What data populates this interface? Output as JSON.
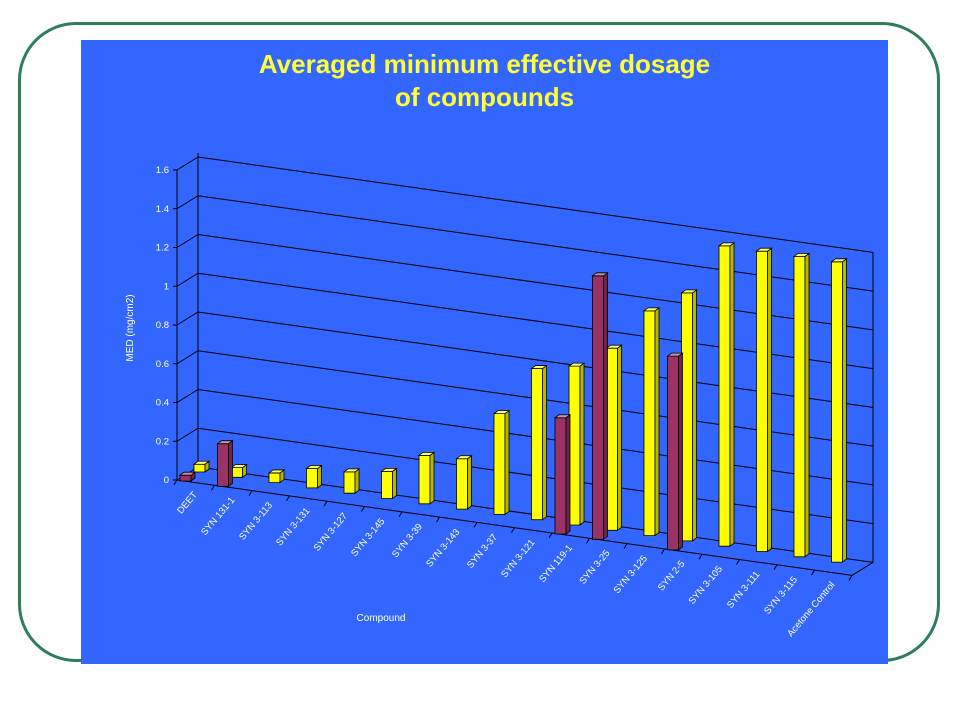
{
  "chart_data": {
    "type": "bar",
    "title": "Averaged minimum effective dosage of compounds",
    "title_lines": [
      "Averaged minimum effective dosage",
      "of compounds"
    ],
    "xlabel": "Compound",
    "ylabel": "MED (mg/cm2)",
    "ylim": [
      0,
      1.6
    ],
    "yticks": [
      "0",
      "0.2",
      "0.4",
      "0.6",
      "0.8",
      "1",
      "1.2",
      "1.4",
      "1.6"
    ],
    "grid": true,
    "style": "3d-clustered-bar",
    "categories": [
      "DEET",
      "SYN 131-1",
      "SYN 3-113",
      "SYN 3-131",
      "SYN 3-127",
      "SYN 3-145",
      "SYN 3-39",
      "SYN 3-143",
      "SYN 3-37",
      "SYN 3-121",
      "SYN 119-1",
      "SYN 3-25",
      "SYN 3-125",
      "SYN 2-5",
      "SYN 3-105",
      "SYN 3-111",
      "SYN 3-115",
      "Acetone Control"
    ],
    "series": [
      {
        "color": "#993366",
        "values": [
          0.03,
          0.22,
          null,
          null,
          null,
          null,
          null,
          null,
          null,
          null,
          0.6,
          1.36,
          null,
          1.0,
          null,
          null,
          null,
          null
        ]
      },
      {
        "color": "#ffff00",
        "values": [
          0.04,
          0.05,
          0.05,
          0.1,
          0.11,
          0.14,
          0.25,
          0.26,
          0.52,
          0.78,
          0.82,
          0.94,
          1.16,
          1.28,
          1.55,
          1.55,
          1.55,
          1.55
        ]
      }
    ]
  }
}
